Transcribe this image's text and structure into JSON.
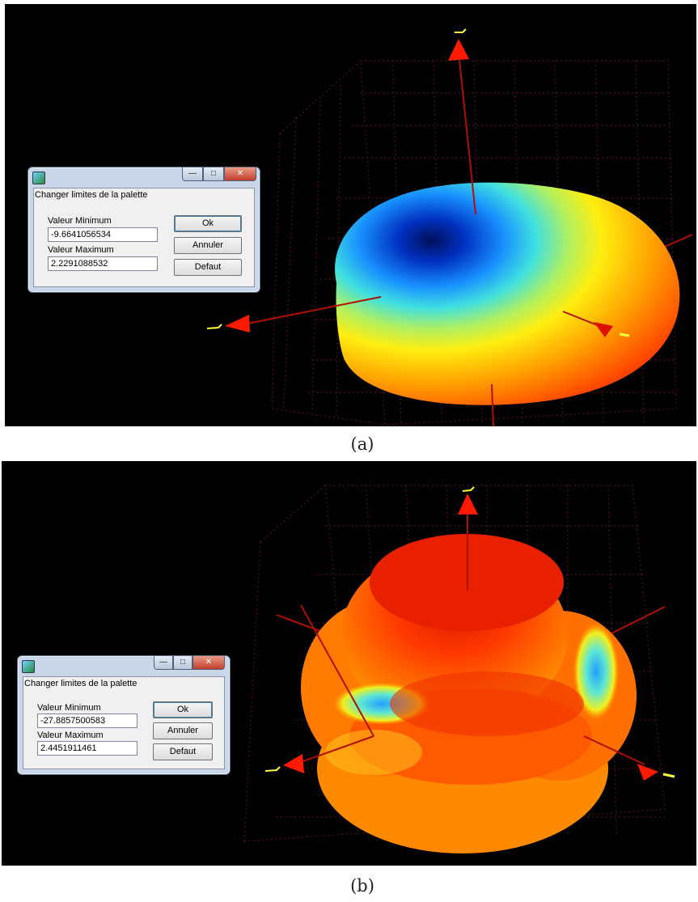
{
  "panels": [
    {
      "caption": "(a)",
      "dialog": {
        "title": "Changer limites de la palette",
        "min_label": "Valeur Minimum",
        "min_value": "-9.6641056534",
        "max_label": "Valeur Maximum",
        "max_value": "2.2291088532",
        "ok_label": "Ok",
        "cancel_label": "Annuler",
        "default_label": "Defaut",
        "minimize_glyph": "—",
        "maximize_glyph": "□",
        "close_glyph": "✕"
      }
    },
    {
      "caption": "(b)",
      "dialog": {
        "title": "Changer limites de la palette",
        "min_label": "Valeur Minimum",
        "min_value": "-27.8857500583",
        "max_label": "Valeur Maximum",
        "max_value": "2.4451911461",
        "ok_label": "Ok",
        "cancel_label": "Annuler",
        "default_label": "Defaut",
        "minimize_glyph": "—",
        "maximize_glyph": "□",
        "close_glyph": "✕"
      }
    }
  ],
  "colors": {
    "background": "#000000",
    "axis_arrow": "#ff1a00",
    "axis_tip": "#ffff40",
    "grid": "#7a1e1e",
    "palette_min": "#00008f",
    "palette_max": "#e01800"
  },
  "icons": [
    "app-icon",
    "minimize-icon",
    "maximize-icon",
    "close-icon",
    "axis-arrow-icon"
  ]
}
